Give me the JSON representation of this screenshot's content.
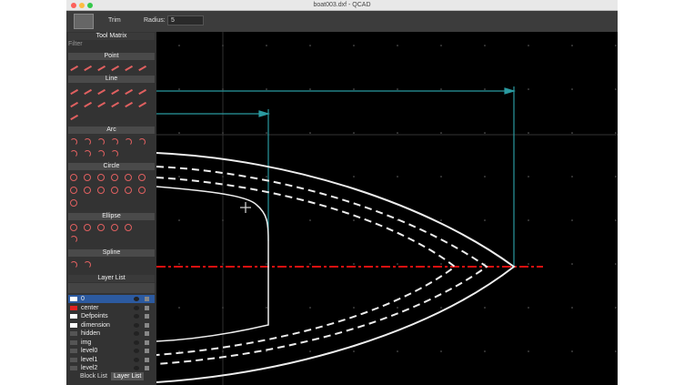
{
  "window": {
    "title": "boat003.dxf - QCAD"
  },
  "toolbar": {
    "trim": "Trim",
    "radius_label": "Radius:",
    "radius_value": "5"
  },
  "tool_matrix": {
    "title": "Tool Matrix",
    "filter": "Filter",
    "sections": [
      "Point",
      "Line",
      "Arc",
      "Circle",
      "Ellipse",
      "Spline"
    ]
  },
  "layer_list": {
    "title": "Layer List",
    "layers": [
      "0",
      "center",
      "Defpoints",
      "dimension",
      "hidden",
      "img",
      "level0",
      "level1",
      "level2"
    ]
  },
  "tabs": [
    "Block List",
    "Layer List"
  ]
}
